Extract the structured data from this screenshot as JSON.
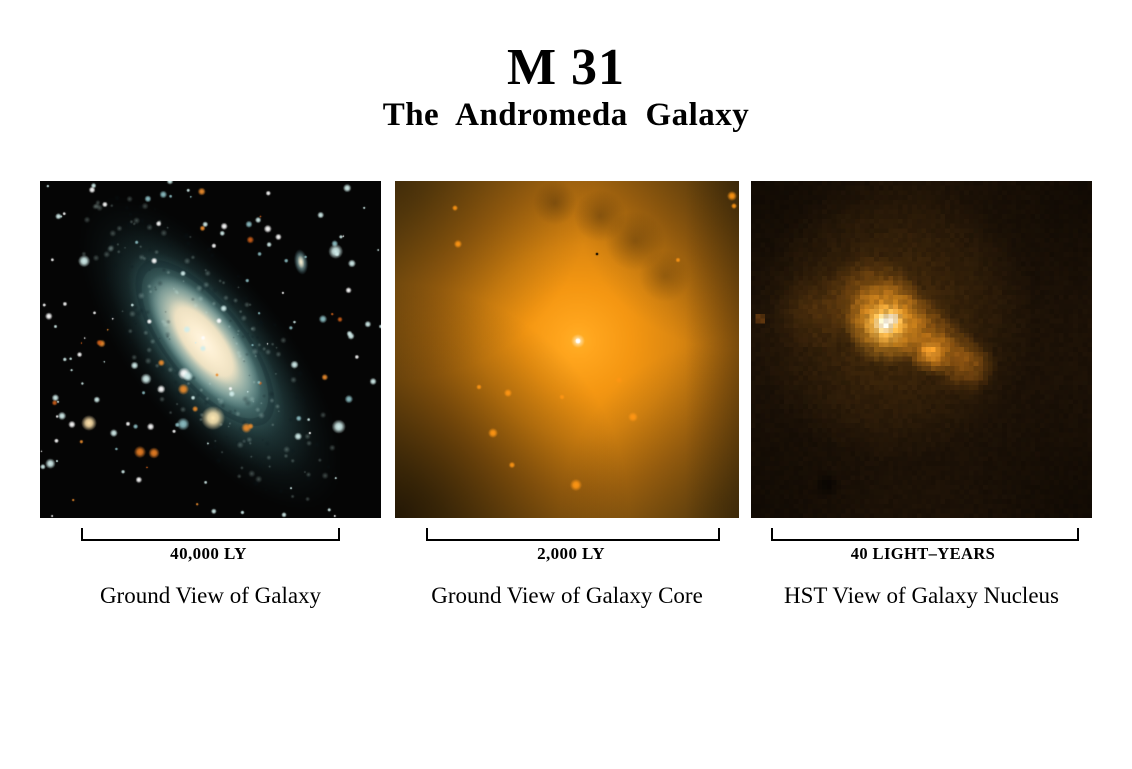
{
  "header": {
    "title": "M 31",
    "subtitle": "The Andromeda Galaxy"
  },
  "panels": [
    {
      "caption": "Ground View of Galaxy",
      "scale_label": "40,000 LY",
      "image_description": "ground-based color photo of the Andromeda spiral galaxy, teal-blue disk with cream core, companion galaxy upper right, star field"
    },
    {
      "caption": "Ground View of Galaxy Core",
      "scale_label": "2,000 LY",
      "image_description": "ground-based view of the bright orange galaxy core with a white central point source and scattered orange stars"
    },
    {
      "caption": "HST View of Galaxy Nucleus",
      "scale_label": "40  LIGHT–YEARS",
      "image_description": "pixelated Hubble Space Telescope image of the double nucleus, white-cored bright blob with fainter orange companion blob"
    }
  ]
}
